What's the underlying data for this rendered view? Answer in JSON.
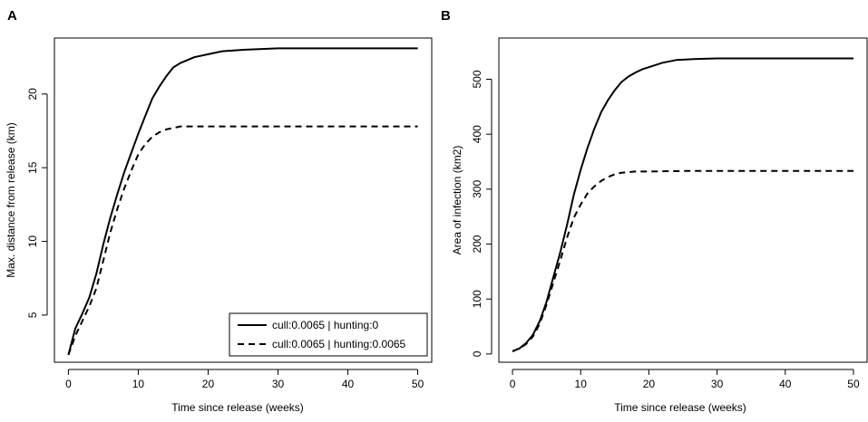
{
  "chart_data": [
    {
      "panel": "A",
      "type": "line",
      "xlabel": "Time since release (weeks)",
      "ylabel": "Max. distance from release (km)",
      "xlim": [
        -2,
        52
      ],
      "ylim": [
        1.8,
        23.8
      ],
      "xticks": [
        0,
        10,
        20,
        30,
        40,
        50
      ],
      "yticks": [
        5,
        10,
        15,
        20
      ],
      "grid": false,
      "legend": {
        "position": "bottom-right",
        "entries": [
          "cull:0.0065 | hunting:0",
          "cull:0.0065 | hunting:0.0065"
        ]
      },
      "series": [
        {
          "name": "cull:0.0065 | hunting:0",
          "dash": "solid",
          "x": [
            0,
            1,
            2,
            3,
            4,
            5,
            6,
            7,
            8,
            9,
            10,
            11,
            12,
            13,
            14,
            15,
            16,
            17,
            18,
            20,
            22,
            25,
            30,
            40,
            50
          ],
          "y": [
            2.3,
            4.1,
            5.1,
            6.2,
            7.8,
            9.8,
            11.6,
            13.2,
            14.7,
            16.0,
            17.3,
            18.5,
            19.7,
            20.5,
            21.2,
            21.8,
            22.1,
            22.3,
            22.5,
            22.7,
            22.9,
            23.0,
            23.1,
            23.1,
            23.1
          ]
        },
        {
          "name": "cull:0.0065 | hunting:0.0065",
          "dash": "dashed",
          "x": [
            0,
            1,
            2,
            3,
            4,
            5,
            6,
            7,
            8,
            9,
            10,
            11,
            12,
            13,
            14,
            15,
            16,
            17,
            18,
            20,
            25,
            30,
            40,
            50
          ],
          "y": [
            2.3,
            3.6,
            4.6,
            5.6,
            6.8,
            8.7,
            10.6,
            12.2,
            13.6,
            14.8,
            15.9,
            16.6,
            17.1,
            17.4,
            17.6,
            17.7,
            17.8,
            17.8,
            17.8,
            17.8,
            17.8,
            17.8,
            17.8,
            17.8
          ]
        }
      ]
    },
    {
      "panel": "B",
      "type": "line",
      "xlabel": "Time since release (weeks)",
      "ylabel": "Area of infection (km2)",
      "xlim": [
        -2,
        52
      ],
      "ylim": [
        -15,
        575
      ],
      "xticks": [
        0,
        10,
        20,
        30,
        40,
        50
      ],
      "yticks": [
        0,
        100,
        200,
        300,
        400,
        500
      ],
      "grid": false,
      "series": [
        {
          "name": "cull:0.0065 | hunting:0",
          "dash": "solid",
          "x": [
            0,
            1,
            2,
            3,
            4,
            5,
            6,
            7,
            8,
            9,
            10,
            11,
            12,
            13,
            14,
            15,
            16,
            17,
            18,
            19,
            20,
            22,
            24,
            27,
            30,
            40,
            50
          ],
          "y": [
            5,
            10,
            20,
            35,
            60,
            95,
            140,
            185,
            235,
            290,
            335,
            375,
            410,
            440,
            462,
            480,
            495,
            505,
            512,
            518,
            522,
            530,
            535,
            537,
            538,
            538,
            538
          ]
        },
        {
          "name": "cull:0.0065 | hunting:0.0065",
          "dash": "dashed",
          "x": [
            0,
            1,
            2,
            3,
            4,
            5,
            6,
            7,
            8,
            9,
            10,
            11,
            12,
            13,
            14,
            15,
            16,
            17,
            18,
            20,
            25,
            30,
            40,
            50
          ],
          "y": [
            5,
            10,
            18,
            32,
            55,
            90,
            130,
            170,
            212,
            248,
            272,
            292,
            305,
            315,
            322,
            327,
            330,
            331,
            332,
            332,
            333,
            333,
            333,
            333
          ]
        }
      ]
    }
  ]
}
